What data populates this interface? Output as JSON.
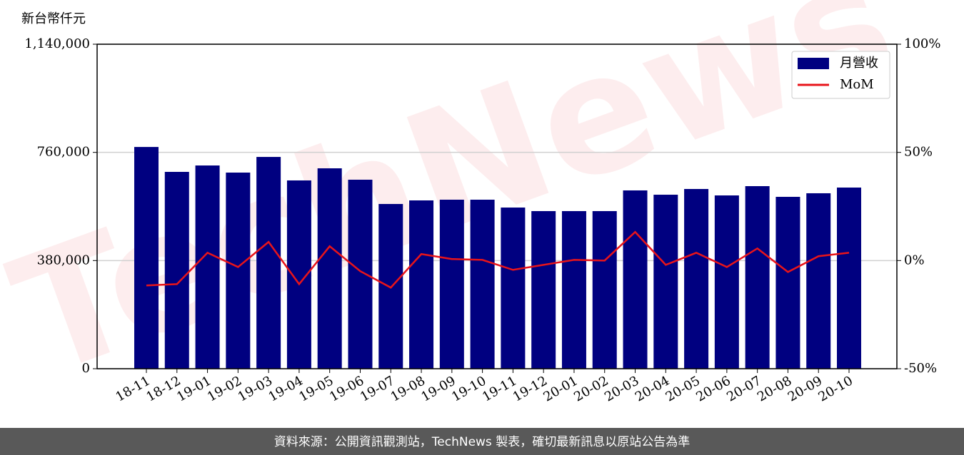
{
  "chart_data": {
    "type": "bar_line",
    "y_axis_label": "新台幣仟元",
    "watermark": "TechNews",
    "source": "資料來源：公開資訊觀測站，TechNews 製表，確切最新訊息以原站公告為準",
    "categories": [
      "18-11",
      "18-12",
      "19-01",
      "19-02",
      "19-03",
      "19-04",
      "19-05",
      "19-06",
      "19-07",
      "19-08",
      "19-09",
      "19-10",
      "19-11",
      "19-12",
      "20-01",
      "20-02",
      "20-03",
      "20-04",
      "20-05",
      "20-06",
      "20-07",
      "20-08",
      "20-09",
      "20-10"
    ],
    "series": [
      {
        "name": "月營收",
        "type": "bar",
        "color": "#000080",
        "values": [
          779000,
          691500,
          714000,
          689000,
          744000,
          661500,
          704000,
          664000,
          578700,
          591300,
          593800,
          593800,
          566200,
          553700,
          553700,
          553700,
          626400,
          611300,
          631400,
          608800,
          641400,
          603800,
          616400,
          636400
        ]
      },
      {
        "name": "MoM",
        "type": "line",
        "axis": "y2",
        "color": "#e8141a",
        "values": [
          -11.5,
          -10.9,
          3.6,
          -3.0,
          8.6,
          -10.9,
          6.6,
          -4.9,
          -12.5,
          3.0,
          0.7,
          0.3,
          -4.3,
          -2.0,
          0.3,
          0,
          13.2,
          -2.0,
          3.6,
          -3.0,
          5.6,
          -5.3,
          2.0,
          3.6
        ]
      }
    ],
    "ylim": [
      0,
      1140000
    ],
    "yticks": [
      {
        "value": 0,
        "label": "0"
      },
      {
        "value": 380000,
        "label": "380,000"
      },
      {
        "value": 760000,
        "label": "760,000"
      },
      {
        "value": 1140000,
        "label": "1,140,000"
      }
    ],
    "y2lim": [
      -50,
      100
    ],
    "y2ticks": [
      {
        "value": -50,
        "label": "-50%"
      },
      {
        "value": 0,
        "label": "0%"
      },
      {
        "value": 50,
        "label": "50%"
      },
      {
        "value": 100,
        "label": "100%"
      }
    ],
    "grid": true,
    "legend": "upper right"
  }
}
